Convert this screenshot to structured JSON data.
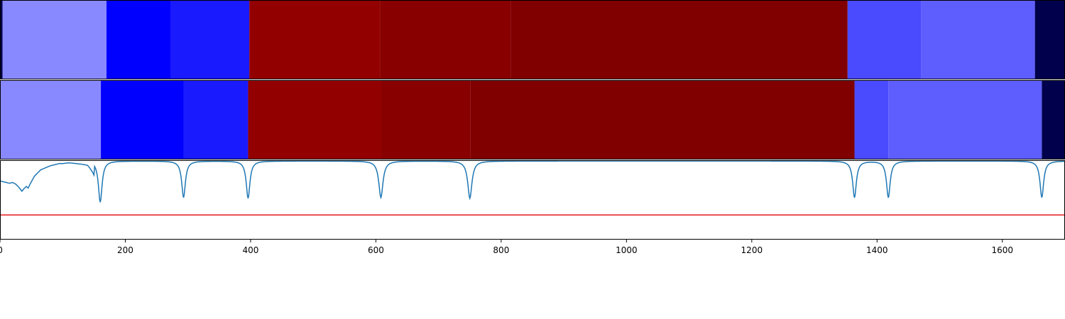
{
  "colors": {
    "axis": "#000000",
    "curve": "#1f77b4",
    "threshold": "#e41a1c",
    "background": "#ffffff"
  },
  "chart_data": {
    "type": "heatmap",
    "xlim": [
      0,
      1700
    ],
    "x_ticks": [
      0,
      200,
      400,
      600,
      800,
      1000,
      1200,
      1400,
      1600
    ],
    "tracks": [
      {
        "type": "heatmap",
        "segments": [
          {
            "start": 0,
            "end": 4,
            "color": "#00004c"
          },
          {
            "start": 4,
            "end": 170,
            "color": "#8989ff"
          },
          {
            "start": 170,
            "end": 273,
            "color": "#0000ff"
          },
          {
            "start": 273,
            "end": 398,
            "color": "#1a1aff"
          },
          {
            "start": 398,
            "end": 607,
            "color": "#920000"
          },
          {
            "start": 607,
            "end": 815,
            "color": "#880000"
          },
          {
            "start": 815,
            "end": 1353,
            "color": "#800000"
          },
          {
            "start": 1353,
            "end": 1470,
            "color": "#4a4aff"
          },
          {
            "start": 1470,
            "end": 1652,
            "color": "#5e5eff"
          },
          {
            "start": 1652,
            "end": 1700,
            "color": "#00004c"
          }
        ]
      },
      {
        "type": "heatmap",
        "segments": [
          {
            "start": 0,
            "end": 161,
            "color": "#8989ff"
          },
          {
            "start": 161,
            "end": 293,
            "color": "#0000ff"
          },
          {
            "start": 293,
            "end": 396,
            "color": "#1a1aff"
          },
          {
            "start": 396,
            "end": 608,
            "color": "#920000"
          },
          {
            "start": 608,
            "end": 751,
            "color": "#880000"
          },
          {
            "start": 751,
            "end": 1364,
            "color": "#800000"
          },
          {
            "start": 1364,
            "end": 1418,
            "color": "#4a4aff"
          },
          {
            "start": 1418,
            "end": 1663,
            "color": "#5e5eff"
          },
          {
            "start": 1663,
            "end": 1700,
            "color": "#00004c"
          }
        ]
      },
      {
        "type": "line",
        "ylim": [
          0,
          1
        ],
        "threshold": 0.31,
        "baseline_points": [
          [
            0,
            0.74
          ],
          [
            5,
            0.73
          ],
          [
            10,
            0.72
          ],
          [
            15,
            0.71
          ],
          [
            20,
            0.72
          ],
          [
            25,
            0.7
          ],
          [
            30,
            0.66
          ],
          [
            35,
            0.61
          ],
          [
            38,
            0.64
          ],
          [
            42,
            0.67
          ],
          [
            45,
            0.65
          ],
          [
            48,
            0.7
          ],
          [
            55,
            0.8
          ],
          [
            65,
            0.88
          ],
          [
            80,
            0.93
          ],
          [
            95,
            0.96
          ],
          [
            100,
            0.96
          ],
          [
            110,
            0.97
          ],
          [
            125,
            0.96
          ],
          [
            140,
            0.95
          ],
          [
            150,
            0.87
          ]
        ],
        "flat_level": 0.99,
        "dips": [
          {
            "x": 160,
            "depth": 0.52,
            "width": 3.5
          },
          {
            "x": 293,
            "depth": 0.46,
            "width": 3.5
          },
          {
            "x": 396,
            "depth": 0.47,
            "width": 3.5
          },
          {
            "x": 608,
            "depth": 0.46,
            "width": 4
          },
          {
            "x": 750,
            "depth": 0.47,
            "width": 4
          },
          {
            "x": 1364,
            "depth": 0.46,
            "width": 3.5
          },
          {
            "x": 1418,
            "depth": 0.46,
            "width": 3.5
          },
          {
            "x": 1663,
            "depth": 0.46,
            "width": 3.5
          }
        ]
      }
    ]
  }
}
